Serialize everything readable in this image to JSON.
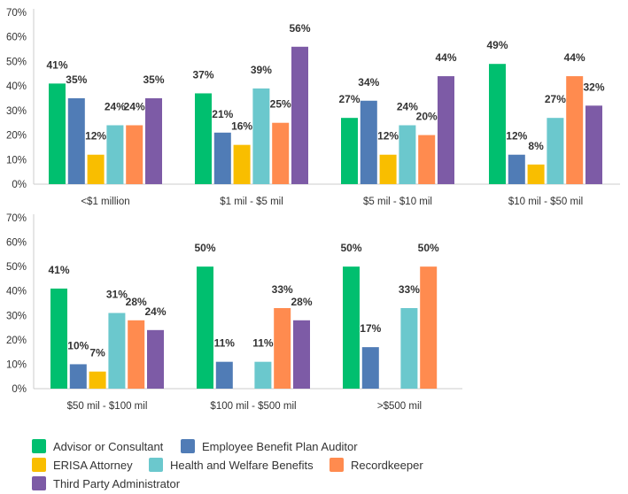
{
  "chart_data": [
    {
      "type": "bar",
      "categories": [
        "<$1 million",
        "$1 mil - $5 mil",
        "$5 mil - $10 mil",
        "$10 mil - $50 mil"
      ],
      "ylim": [
        0,
        70
      ],
      "yticks": [
        "0%",
        "10%",
        "20%",
        "30%",
        "40%",
        "50%",
        "60%",
        "70%"
      ],
      "grid": false,
      "series": [
        {
          "name": "Advisor or Consultant",
          "color": "#00BF6F",
          "values": [
            41,
            37,
            27,
            49
          ]
        },
        {
          "name": "Employee Benefit Plan Auditor",
          "color": "#507CB6",
          "values": [
            35,
            21,
            34,
            12
          ]
        },
        {
          "name": "ERISA Attorney",
          "color": "#F9BE00",
          "values": [
            12,
            16,
            12,
            8
          ]
        },
        {
          "name": "Health and Welfare Benefits",
          "color": "#6BC8CD",
          "values": [
            24,
            39,
            24,
            27
          ]
        },
        {
          "name": "Recordkeeper",
          "color": "#FF8B4F",
          "values": [
            24,
            25,
            20,
            44
          ]
        },
        {
          "name": "Third Party Administrator",
          "color": "#7D5BA6",
          "values": [
            35,
            56,
            44,
            32
          ]
        }
      ]
    },
    {
      "type": "bar",
      "categories": [
        "$50 mil - $100 mil",
        "$100 mil - $500 mil",
        ">$500 mil"
      ],
      "ylim": [
        0,
        70
      ],
      "yticks": [
        "0%",
        "10%",
        "20%",
        "30%",
        "40%",
        "50%",
        "60%",
        "70%"
      ],
      "grid": false,
      "series": [
        {
          "name": "Advisor or Consultant",
          "color": "#00BF6F",
          "values": [
            41,
            50,
            50
          ]
        },
        {
          "name": "Employee Benefit Plan Auditor",
          "color": "#507CB6",
          "values": [
            10,
            11,
            17
          ]
        },
        {
          "name": "ERISA Attorney",
          "color": "#F9BE00",
          "values": [
            7,
            0,
            0
          ]
        },
        {
          "name": "Health and Welfare Benefits",
          "color": "#6BC8CD",
          "values": [
            31,
            11,
            33
          ]
        },
        {
          "name": "Recordkeeper",
          "color": "#FF8B4F",
          "values": [
            28,
            33,
            50
          ]
        },
        {
          "name": "Third Party Administrator",
          "color": "#7D5BA6",
          "values": [
            24,
            28,
            0
          ]
        }
      ]
    }
  ],
  "legend": {
    "placement": "bottom-left",
    "items": [
      {
        "label": "Advisor or Consultant",
        "color": "#00BF6F"
      },
      {
        "label": "Employee Benefit Plan Auditor",
        "color": "#507CB6"
      },
      {
        "label": "ERISA Attorney",
        "color": "#F9BE00"
      },
      {
        "label": "Health and Welfare Benefits",
        "color": "#6BC8CD"
      },
      {
        "label": "Recordkeeper",
        "color": "#FF8B4F"
      },
      {
        "label": "Third Party Administrator",
        "color": "#7D5BA6"
      }
    ]
  }
}
